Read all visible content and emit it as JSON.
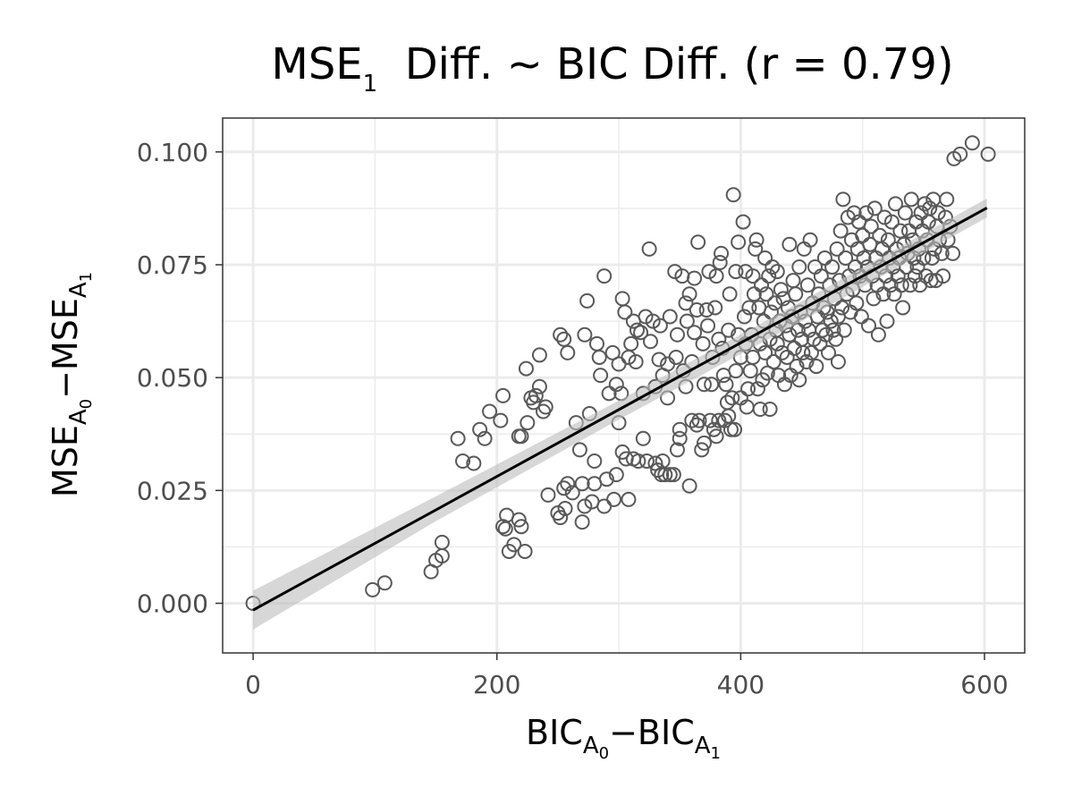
{
  "chart_data": {
    "type": "scatter",
    "title": {
      "main": "MSE",
      "sub": "1",
      "rest": "  Diff. ~ BIC Diff. (r = 0.79)"
    },
    "xlabel": {
      "a": "BIC",
      "a_sub": "A",
      "a_subsub": "0",
      "sep": "−",
      "b": "BIC",
      "b_sub": "A",
      "b_subsub": "1"
    },
    "ylabel": {
      "a": "MSE",
      "a_sub": "A",
      "a_subsub": "0",
      "sep": "−",
      "b": "MSE",
      "b_sub": "A",
      "b_subsub": "1"
    },
    "xlim": [
      -25,
      633
    ],
    "ylim": [
      -0.011,
      0.1075
    ],
    "x_ticks": [
      0,
      200,
      400,
      600
    ],
    "x_tick_labels": [
      "0",
      "200",
      "400",
      "600"
    ],
    "y_ticks": [
      0,
      0.025,
      0.05,
      0.075,
      0.1
    ],
    "y_tick_labels": [
      "0.000",
      "0.025",
      "0.050",
      "0.075",
      "0.100"
    ],
    "grid": true,
    "point_color": "#595959",
    "line_color": "#000000",
    "band_color": "#bdbdbd",
    "fit": {
      "x": [
        0,
        602
      ],
      "y": [
        -0.0015,
        0.0876
      ]
    },
    "confidence_band": {
      "x": [
        0,
        150,
        300,
        450,
        602
      ],
      "upper": [
        0.0028,
        0.0237,
        0.0449,
        0.0669,
        0.0897
      ],
      "lower": [
        -0.0058,
        0.0182,
        0.0407,
        0.0625,
        0.0855
      ]
    },
    "points": [
      [
        0,
        0.0
      ],
      [
        98,
        0.003
      ],
      [
        108,
        0.0045
      ],
      [
        146,
        0.007
      ],
      [
        150,
        0.0095
      ],
      [
        155,
        0.0105
      ],
      [
        155,
        0.0135
      ],
      [
        168,
        0.0365
      ],
      [
        172,
        0.0315
      ],
      [
        181,
        0.031
      ],
      [
        186,
        0.0385
      ],
      [
        190,
        0.0365
      ],
      [
        194,
        0.0425
      ],
      [
        203,
        0.0405
      ],
      [
        205,
        0.046
      ],
      [
        205,
        0.017
      ],
      [
        207,
        0.0165
      ],
      [
        208,
        0.0195
      ],
      [
        210,
        0.0115
      ],
      [
        214,
        0.013
      ],
      [
        218,
        0.0185
      ],
      [
        218,
        0.037
      ],
      [
        220,
        0.037
      ],
      [
        220,
        0.017
      ],
      [
        223,
        0.0115
      ],
      [
        224,
        0.052
      ],
      [
        225,
        0.04
      ],
      [
        228,
        0.0455
      ],
      [
        230,
        0.0445
      ],
      [
        232,
        0.046
      ],
      [
        235,
        0.048
      ],
      [
        235,
        0.055
      ],
      [
        238,
        0.0425
      ],
      [
        240,
        0.0435
      ],
      [
        242,
        0.024
      ],
      [
        250,
        0.02
      ],
      [
        252,
        0.019
      ],
      [
        252,
        0.0595
      ],
      [
        255,
        0.0255
      ],
      [
        255,
        0.0585
      ],
      [
        256,
        0.021
      ],
      [
        258,
        0.0555
      ],
      [
        258,
        0.0265
      ],
      [
        262,
        0.0245
      ],
      [
        265,
        0.04
      ],
      [
        268,
        0.034
      ],
      [
        270,
        0.018
      ],
      [
        270,
        0.0265
      ],
      [
        272,
        0.0215
      ],
      [
        272,
        0.0595
      ],
      [
        274,
        0.067
      ],
      [
        276,
        0.042
      ],
      [
        278,
        0.0225
      ],
      [
        280,
        0.0265
      ],
      [
        280,
        0.0315
      ],
      [
        282,
        0.0575
      ],
      [
        284,
        0.0545
      ],
      [
        285,
        0.0505
      ],
      [
        288,
        0.0725
      ],
      [
        288,
        0.0215
      ],
      [
        290,
        0.0275
      ],
      [
        292,
        0.0465
      ],
      [
        295,
        0.0555
      ],
      [
        296,
        0.023
      ],
      [
        298,
        0.0485
      ],
      [
        298,
        0.0285
      ],
      [
        300,
        0.053
      ],
      [
        300,
        0.04
      ],
      [
        302,
        0.0465
      ],
      [
        303,
        0.0335
      ],
      [
        303,
        0.0675
      ],
      [
        305,
        0.0645
      ],
      [
        306,
        0.032
      ],
      [
        308,
        0.0545
      ],
      [
        308,
        0.023
      ],
      [
        310,
        0.0575
      ],
      [
        312,
        0.032
      ],
      [
        312,
        0.0625
      ],
      [
        314,
        0.0535
      ],
      [
        315,
        0.0605
      ],
      [
        316,
        0.0315
      ],
      [
        318,
        0.06
      ],
      [
        320,
        0.0465
      ],
      [
        320,
        0.0365
      ],
      [
        322,
        0.0635
      ],
      [
        323,
        0.0315
      ],
      [
        325,
        0.0785
      ],
      [
        326,
        0.058
      ],
      [
        328,
        0.0625
      ],
      [
        330,
        0.031
      ],
      [
        330,
        0.048
      ],
      [
        332,
        0.0295
      ],
      [
        333,
        0.054
      ],
      [
        334,
        0.0615
      ],
      [
        335,
        0.0285
      ],
      [
        336,
        0.0505
      ],
      [
        336,
        0.0315
      ],
      [
        338,
        0.0285
      ],
      [
        340,
        0.053
      ],
      [
        340,
        0.0455
      ],
      [
        342,
        0.0285
      ],
      [
        342,
        0.0635
      ],
      [
        345,
        0.0285
      ],
      [
        346,
        0.0735
      ],
      [
        347,
        0.0545
      ],
      [
        348,
        0.034
      ],
      [
        348,
        0.0595
      ],
      [
        350,
        0.0385
      ],
      [
        350,
        0.0365
      ],
      [
        352,
        0.0725
      ],
      [
        353,
        0.0515
      ],
      [
        355,
        0.048
      ],
      [
        355,
        0.0665
      ],
      [
        356,
        0.0625
      ],
      [
        358,
        0.026
      ],
      [
        358,
        0.0685
      ],
      [
        360,
        0.0405
      ],
      [
        360,
        0.0535
      ],
      [
        362,
        0.06
      ],
      [
        362,
        0.072
      ],
      [
        364,
        0.0395
      ],
      [
        364,
        0.065
      ],
      [
        365,
        0.08
      ],
      [
        366,
        0.0405
      ],
      [
        368,
        0.034
      ],
      [
        369,
        0.0575
      ],
      [
        370,
        0.0485
      ],
      [
        370,
        0.0355
      ],
      [
        372,
        0.065
      ],
      [
        373,
        0.0615
      ],
      [
        374,
        0.0735
      ],
      [
        375,
        0.0405
      ],
      [
        376,
        0.0485
      ],
      [
        377,
        0.0545
      ],
      [
        378,
        0.0385
      ],
      [
        379,
        0.0655
      ],
      [
        380,
        0.037
      ],
      [
        380,
        0.0725
      ],
      [
        382,
        0.0585
      ],
      [
        382,
        0.0405
      ],
      [
        383,
        0.0755
      ],
      [
        384,
        0.0775
      ],
      [
        385,
        0.0565
      ],
      [
        386,
        0.0505
      ],
      [
        387,
        0.0405
      ],
      [
        388,
        0.0485
      ],
      [
        389,
        0.0445
      ],
      [
        390,
        0.0415
      ],
      [
        390,
        0.0605
      ],
      [
        391,
        0.0685
      ],
      [
        392,
        0.0385
      ],
      [
        393,
        0.0455
      ],
      [
        394,
        0.0905
      ],
      [
        395,
        0.0385
      ],
      [
        396,
        0.0735
      ],
      [
        396,
        0.0515
      ],
      [
        398,
        0.0595
      ],
      [
        398,
        0.08
      ],
      [
        400,
        0.0455
      ],
      [
        400,
        0.0545
      ],
      [
        402,
        0.0845
      ],
      [
        403,
        0.0635
      ],
      [
        404,
        0.0575
      ],
      [
        404,
        0.0735
      ],
      [
        405,
        0.0435
      ],
      [
        406,
        0.0475
      ],
      [
        407,
        0.0655
      ],
      [
        408,
        0.0515
      ],
      [
        409,
        0.0595
      ],
      [
        410,
        0.0725
      ],
      [
        410,
        0.0545
      ],
      [
        411,
        0.0685
      ],
      [
        412,
        0.0785
      ],
      [
        413,
        0.0805
      ],
      [
        414,
        0.0475
      ],
      [
        415,
        0.0655
      ],
      [
        416,
        0.0575
      ],
      [
        416,
        0.043
      ],
      [
        417,
        0.0705
      ],
      [
        418,
        0.0495
      ],
      [
        419,
        0.0625
      ],
      [
        420,
        0.0765
      ],
      [
        420,
        0.0555
      ],
      [
        421,
        0.0685
      ],
      [
        422,
        0.051
      ],
      [
        423,
        0.0725
      ],
      [
        424,
        0.0585
      ],
      [
        424,
        0.043
      ],
      [
        425,
        0.0645
      ],
      [
        426,
        0.0745
      ],
      [
        427,
        0.0535
      ],
      [
        428,
        0.0665
      ],
      [
        429,
        0.0605
      ],
      [
        430,
        0.0575
      ],
      [
        430,
        0.0735
      ],
      [
        431,
        0.0505
      ],
      [
        432,
        0.0625
      ],
      [
        433,
        0.0695
      ],
      [
        434,
        0.0555
      ],
      [
        435,
        0.0675
      ],
      [
        436,
        0.0485
      ],
      [
        437,
        0.0615
      ],
      [
        438,
        0.0545
      ],
      [
        439,
        0.0655
      ],
      [
        440,
        0.0795
      ],
      [
        440,
        0.0595
      ],
      [
        441,
        0.0505
      ],
      [
        442,
        0.0635
      ],
      [
        443,
        0.0715
      ],
      [
        444,
        0.0565
      ],
      [
        445,
        0.0685
      ],
      [
        446,
        0.0525
      ],
      [
        447,
        0.0605
      ],
      [
        448,
        0.0745
      ],
      [
        448,
        0.0495
      ],
      [
        449,
        0.0645
      ],
      [
        450,
        0.0585
      ],
      [
        451,
        0.0555
      ],
      [
        452,
        0.0785
      ],
      [
        453,
        0.0625
      ],
      [
        454,
        0.0535
      ],
      [
        455,
        0.0705
      ],
      [
        456,
        0.0605
      ],
      [
        457,
        0.0805
      ],
      [
        458,
        0.0555
      ],
      [
        459,
        0.0665
      ],
      [
        460,
        0.0585
      ],
      [
        461,
        0.0745
      ],
      [
        462,
        0.0525
      ],
      [
        463,
        0.0635
      ],
      [
        464,
        0.0685
      ],
      [
        465,
        0.0575
      ],
      [
        466,
        0.0725
      ],
      [
        467,
        0.0605
      ],
      [
        468,
        0.0655
      ],
      [
        469,
        0.0765
      ],
      [
        470,
        0.0595
      ],
      [
        471,
        0.0645
      ],
      [
        472,
        0.0555
      ],
      [
        473,
        0.0705
      ],
      [
        474,
        0.0625
      ],
      [
        475,
        0.0745
      ],
      [
        476,
        0.0605
      ],
      [
        477,
        0.0675
      ],
      [
        478,
        0.0585
      ],
      [
        479,
        0.0785
      ],
      [
        480,
        0.0635
      ],
      [
        480,
        0.0535
      ],
      [
        481,
        0.0715
      ],
      [
        482,
        0.0825
      ],
      [
        483,
        0.0655
      ],
      [
        484,
        0.0895
      ],
      [
        485,
        0.0605
      ],
      [
        486,
        0.0765
      ],
      [
        487,
        0.0685
      ],
      [
        488,
        0.0855
      ],
      [
        489,
        0.0725
      ],
      [
        490,
        0.0645
      ],
      [
        491,
        0.0805
      ],
      [
        492,
        0.0695
      ],
      [
        493,
        0.0865
      ],
      [
        494,
        0.0745
      ],
      [
        495,
        0.0665
      ],
      [
        496,
        0.0785
      ],
      [
        497,
        0.0845
      ],
      [
        498,
        0.0725
      ],
      [
        499,
        0.0635
      ],
      [
        500,
        0.0815
      ],
      [
        501,
        0.0765
      ],
      [
        502,
        0.0705
      ],
      [
        503,
        0.0865
      ],
      [
        504,
        0.0745
      ],
      [
        505,
        0.0615
      ],
      [
        506,
        0.0795
      ],
      [
        507,
        0.0835
      ],
      [
        508,
        0.0725
      ],
      [
        509,
        0.0675
      ],
      [
        510,
        0.0875
      ],
      [
        511,
        0.0765
      ],
      [
        512,
        0.0705
      ],
      [
        513,
        0.0595
      ],
      [
        514,
        0.0815
      ],
      [
        515,
        0.0745
      ],
      [
        516,
        0.0785
      ],
      [
        517,
        0.0685
      ],
      [
        518,
        0.0855
      ],
      [
        519,
        0.0725
      ],
      [
        520,
        0.0625
      ],
      [
        521,
        0.0805
      ],
      [
        522,
        0.0765
      ],
      [
        523,
        0.0705
      ],
      [
        524,
        0.0845
      ],
      [
        525,
        0.0745
      ],
      [
        526,
        0.0685
      ],
      [
        527,
        0.0885
      ],
      [
        528,
        0.0785
      ],
      [
        529,
        0.0725
      ],
      [
        530,
        0.0765
      ],
      [
        531,
        0.0825
      ],
      [
        532,
        0.0705
      ],
      [
        533,
        0.0655
      ],
      [
        534,
        0.0795
      ],
      [
        535,
        0.0865
      ],
      [
        536,
        0.0745
      ],
      [
        537,
        0.0775
      ],
      [
        538,
        0.0825
      ],
      [
        539,
        0.0705
      ],
      [
        540,
        0.0895
      ],
      [
        541,
        0.0805
      ],
      [
        542,
        0.0765
      ],
      [
        543,
        0.0725
      ],
      [
        544,
        0.0845
      ],
      [
        545,
        0.0745
      ],
      [
        546,
        0.0785
      ],
      [
        547,
        0.0705
      ],
      [
        548,
        0.0865
      ],
      [
        549,
        0.0825
      ],
      [
        550,
        0.0765
      ],
      [
        551,
        0.0885
      ],
      [
        552,
        0.0725
      ],
      [
        553,
        0.0805
      ],
      [
        554,
        0.0845
      ],
      [
        555,
        0.0875
      ],
      [
        556,
        0.0715
      ],
      [
        557,
        0.0765
      ],
      [
        558,
        0.0895
      ],
      [
        559,
        0.0785
      ],
      [
        560,
        0.0715
      ],
      [
        561,
        0.0835
      ],
      [
        562,
        0.0865
      ],
      [
        563,
        0.0805
      ],
      [
        565,
        0.0775
      ],
      [
        566,
        0.0725
      ],
      [
        568,
        0.0855
      ],
      [
        569,
        0.0895
      ],
      [
        570,
        0.0805
      ],
      [
        572,
        0.0835
      ],
      [
        574,
        0.0775
      ],
      [
        575,
        0.0985
      ],
      [
        580,
        0.0995
      ],
      [
        590,
        0.102
      ],
      [
        603,
        0.0995
      ]
    ]
  }
}
